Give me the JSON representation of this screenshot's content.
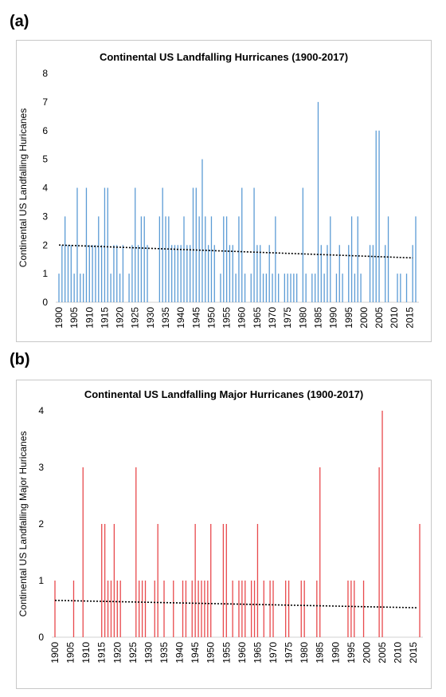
{
  "panels": {
    "a": "(a)",
    "b": "(b)"
  },
  "chart_data": [
    {
      "type": "bar",
      "title": "Continental US Landfalling Hurricanes (1900-2017)",
      "xlabel": "",
      "ylabel": "Continental US Landfalling Huricanes",
      "ylim": [
        0,
        8
      ],
      "yticks": [
        0,
        1,
        2,
        3,
        4,
        5,
        6,
        7,
        8
      ],
      "xticks": [
        1900,
        1905,
        1910,
        1915,
        1920,
        1925,
        1930,
        1935,
        1940,
        1945,
        1950,
        1955,
        1960,
        1965,
        1970,
        1975,
        1980,
        1985,
        1990,
        1995,
        2000,
        2005,
        2010,
        2015
      ],
      "grid": false,
      "color": "#5b9bd5",
      "trend": {
        "style": "dotted",
        "color": "#000000",
        "start": [
          1900,
          2.0
        ],
        "end": [
          2016,
          1.55
        ]
      },
      "x": [
        1900,
        1901,
        1902,
        1903,
        1904,
        1905,
        1906,
        1907,
        1908,
        1909,
        1910,
        1911,
        1912,
        1913,
        1914,
        1915,
        1916,
        1917,
        1918,
        1919,
        1920,
        1921,
        1922,
        1923,
        1924,
        1925,
        1926,
        1927,
        1928,
        1929,
        1930,
        1931,
        1932,
        1933,
        1934,
        1935,
        1936,
        1937,
        1938,
        1939,
        1940,
        1941,
        1942,
        1943,
        1944,
        1945,
        1946,
        1947,
        1948,
        1949,
        1950,
        1951,
        1952,
        1953,
        1954,
        1955,
        1956,
        1957,
        1958,
        1959,
        1960,
        1961,
        1962,
        1963,
        1964,
        1965,
        1966,
        1967,
        1968,
        1969,
        1970,
        1971,
        1972,
        1973,
        1974,
        1975,
        1976,
        1977,
        1978,
        1979,
        1980,
        1981,
        1982,
        1983,
        1984,
        1985,
        1986,
        1987,
        1988,
        1989,
        1990,
        1991,
        1992,
        1993,
        1994,
        1995,
        1996,
        1997,
        1998,
        1999,
        2000,
        2001,
        2002,
        2003,
        2004,
        2005,
        2006,
        2007,
        2008,
        2009,
        2010,
        2011,
        2012,
        2013,
        2014,
        2015,
        2016,
        2017
      ],
      "values": [
        1,
        2,
        3,
        2,
        2,
        1,
        4,
        1,
        1,
        4,
        2,
        2,
        2,
        3,
        2,
        4,
        4,
        1,
        2,
        2,
        1,
        2,
        0,
        1,
        2,
        4,
        2,
        3,
        3,
        2,
        0,
        0,
        0,
        3,
        4,
        3,
        3,
        2,
        2,
        2,
        2,
        3,
        2,
        2,
        4,
        4,
        3,
        5,
        3,
        2,
        3,
        2,
        0,
        1,
        3,
        3,
        2,
        2,
        1,
        3,
        4,
        1,
        0,
        1,
        4,
        2,
        2,
        1,
        1,
        2,
        1,
        3,
        1,
        0,
        1,
        1,
        1,
        1,
        1,
        0,
        4,
        1,
        0,
        1,
        1,
        7,
        2,
        1,
        2,
        3,
        0,
        1,
        2,
        1,
        0,
        2,
        3,
        1,
        3,
        1,
        0,
        0,
        2,
        2,
        6,
        6,
        0,
        2,
        3,
        0,
        0,
        1,
        1,
        0,
        1,
        0,
        2,
        3
      ]
    },
    {
      "type": "bar",
      "title": "Continental US Landfalling Major Hurricanes (1900-2017)",
      "xlabel": "",
      "ylabel": "Continental US Landfalling Major Huricanes",
      "ylim": [
        0,
        4
      ],
      "yticks": [
        0,
        1,
        2,
        3,
        4
      ],
      "xticks": [
        1900,
        1905,
        1910,
        1915,
        1920,
        1925,
        1930,
        1935,
        1940,
        1945,
        1950,
        1955,
        1960,
        1965,
        1970,
        1975,
        1980,
        1985,
        1990,
        1995,
        2000,
        2005,
        2010,
        2015
      ],
      "grid": false,
      "color": "#e8494c",
      "trend": {
        "style": "dotted",
        "color": "#000000",
        "start": [
          1900,
          0.65
        ],
        "end": [
          2016,
          0.52
        ]
      },
      "x": [
        1900,
        1901,
        1902,
        1903,
        1904,
        1905,
        1906,
        1907,
        1908,
        1909,
        1910,
        1911,
        1912,
        1913,
        1914,
        1915,
        1916,
        1917,
        1918,
        1919,
        1920,
        1921,
        1922,
        1923,
        1924,
        1925,
        1926,
        1927,
        1928,
        1929,
        1930,
        1931,
        1932,
        1933,
        1934,
        1935,
        1936,
        1937,
        1938,
        1939,
        1940,
        1941,
        1942,
        1943,
        1944,
        1945,
        1946,
        1947,
        1948,
        1949,
        1950,
        1951,
        1952,
        1953,
        1954,
        1955,
        1956,
        1957,
        1958,
        1959,
        1960,
        1961,
        1962,
        1963,
        1964,
        1965,
        1966,
        1967,
        1968,
        1969,
        1970,
        1971,
        1972,
        1973,
        1974,
        1975,
        1976,
        1977,
        1978,
        1979,
        1980,
        1981,
        1982,
        1983,
        1984,
        1985,
        1986,
        1987,
        1988,
        1989,
        1990,
        1991,
        1992,
        1993,
        1994,
        1995,
        1996,
        1997,
        1998,
        1999,
        2000,
        2001,
        2002,
        2003,
        2004,
        2005,
        2006,
        2007,
        2008,
        2009,
        2010,
        2011,
        2012,
        2013,
        2014,
        2015,
        2016,
        2017
      ],
      "values": [
        1,
        0,
        0,
        0,
        0,
        0,
        1,
        0,
        0,
        3,
        0,
        0,
        0,
        0,
        0,
        2,
        2,
        1,
        1,
        2,
        1,
        1,
        0,
        0,
        0,
        0,
        3,
        1,
        1,
        1,
        0,
        0,
        1,
        2,
        0,
        1,
        0,
        0,
        1,
        0,
        0,
        1,
        1,
        0,
        1,
        2,
        1,
        1,
        1,
        1,
        2,
        0,
        0,
        0,
        2,
        2,
        0,
        1,
        0,
        1,
        1,
        1,
        0,
        1,
        1,
        2,
        0,
        1,
        0,
        1,
        1,
        0,
        0,
        0,
        1,
        1,
        0,
        0,
        0,
        1,
        1,
        0,
        0,
        0,
        1,
        3,
        0,
        0,
        0,
        0,
        0,
        0,
        0,
        0,
        1,
        1,
        1,
        0,
        0,
        1,
        0,
        0,
        0,
        0,
        3,
        4,
        0,
        0,
        0,
        0,
        0,
        0,
        0,
        0,
        0,
        0,
        0,
        2
      ]
    }
  ]
}
